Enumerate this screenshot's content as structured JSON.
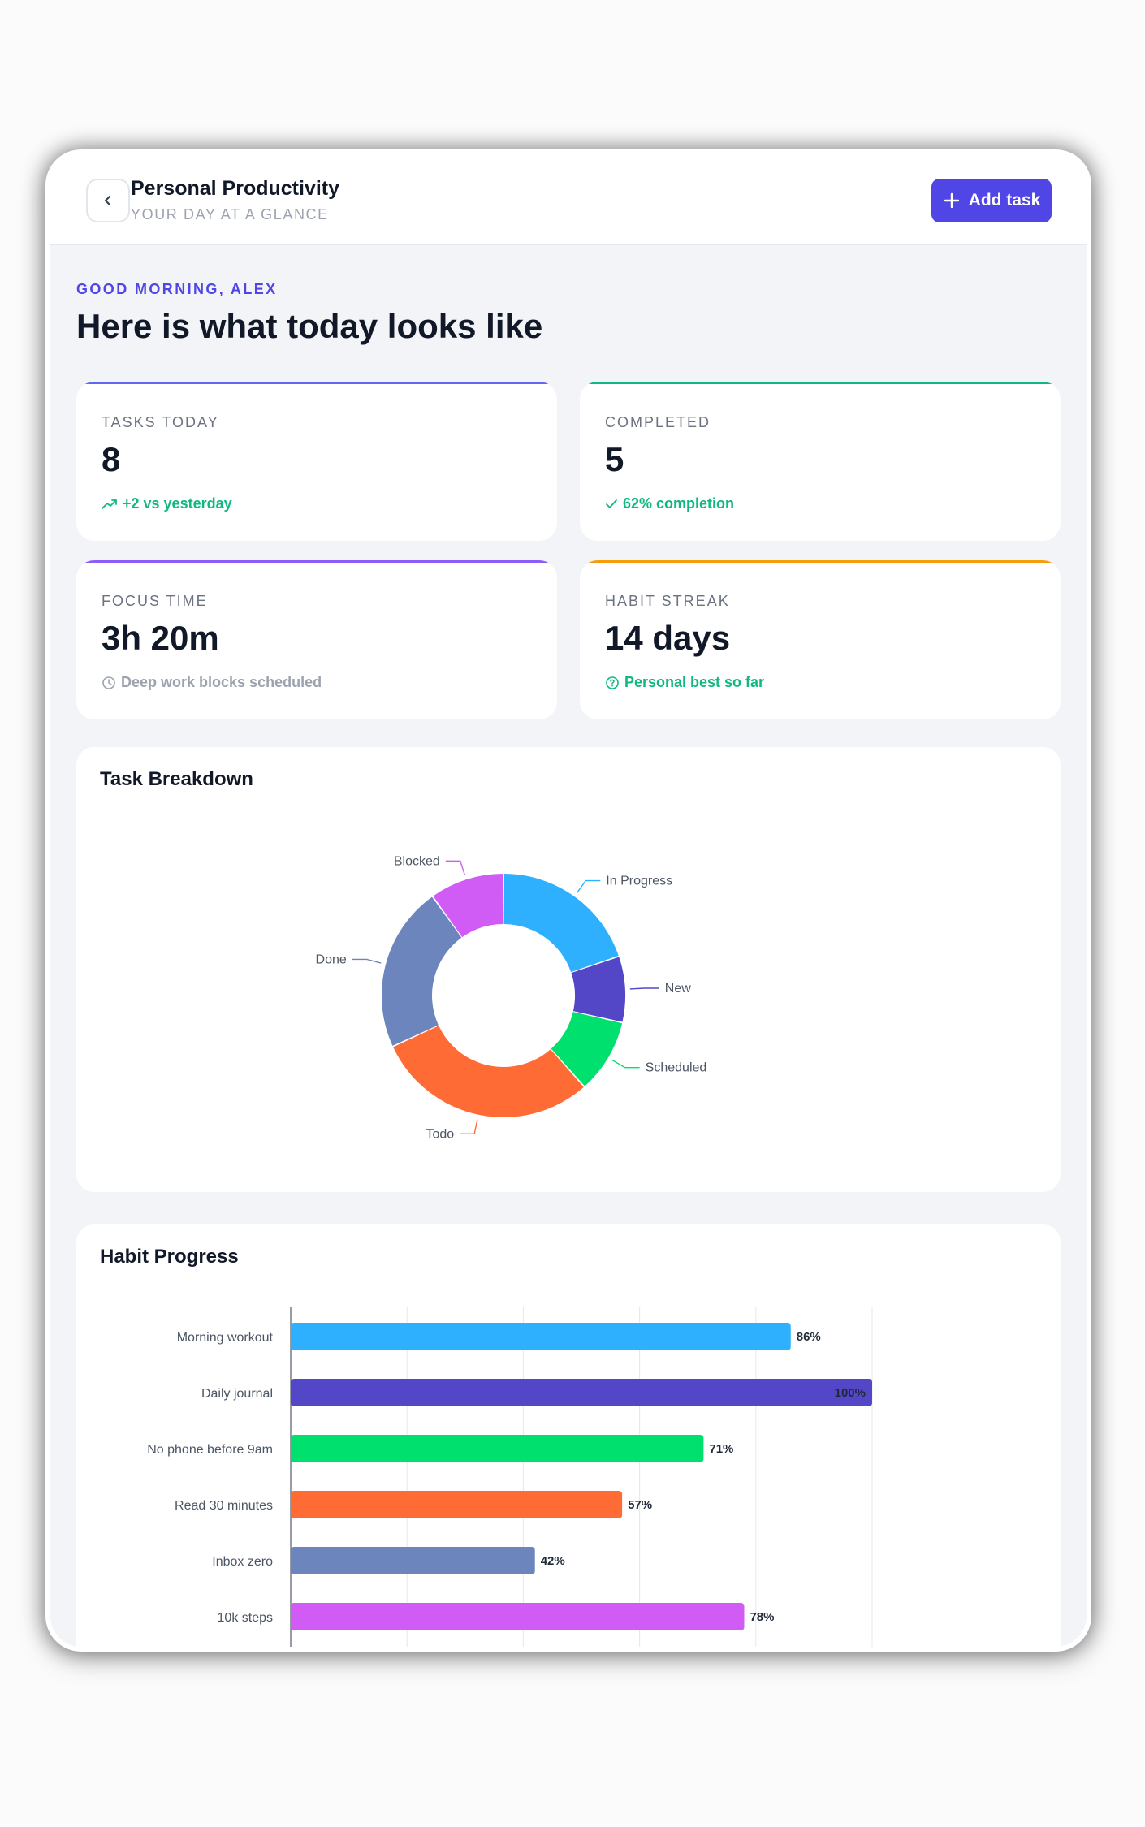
{
  "header": {
    "title": "Personal Productivity",
    "subtitle": "YOUR DAY AT A GLANCE",
    "add_label": "Add task",
    "accent": "#4f46e5"
  },
  "greeting": "GOOD MORNING, ALEX",
  "headline": "Here is what today looks like",
  "stats": [
    {
      "label": "TASKS TODAY",
      "value": "8",
      "note": "+2 vs yesterday",
      "note_icon": "trend-up-icon",
      "accent": "#6366f1",
      "note_color": "#10b981"
    },
    {
      "label": "COMPLETED",
      "value": "5",
      "note": "62% completion",
      "note_icon": "check-icon",
      "accent": "#10b981",
      "note_color": "#10b981"
    },
    {
      "label": "FOCUS TIME",
      "value": "3h 20m",
      "note": "Deep work blocks scheduled",
      "note_icon": "clock-icon",
      "accent": "#8b5cf6",
      "note_color": "#9ca3af"
    },
    {
      "label": "HABIT STREAK",
      "value": "14 days",
      "note": "Personal best so far",
      "note_icon": "help-circle-icon",
      "accent": "#f59e0b",
      "note_color": "#10b981"
    }
  ],
  "task_breakdown": {
    "title": "Task Breakdown",
    "chart_data": {
      "type": "pie",
      "categories": [
        "In Progress",
        "New",
        "Scheduled",
        "Todo",
        "Done",
        "Blocked"
      ],
      "values": [
        18,
        8,
        9,
        27,
        20,
        9
      ],
      "colors": [
        "#2eb0ff",
        "#5347c8",
        "#00e06f",
        "#ff6b35",
        "#6c86bd",
        "#d05cf5"
      ],
      "donut": true
    }
  },
  "habit_progress": {
    "title": "Habit Progress",
    "chart_data": {
      "type": "bar",
      "orientation": "horizontal",
      "categories": [
        "Morning workout",
        "Daily journal",
        "No phone before 9am",
        "Read 30 minutes",
        "Inbox zero",
        "10k steps"
      ],
      "values": [
        86,
        100,
        71,
        57,
        42,
        78
      ],
      "value_labels": [
        "86%",
        "100%",
        "71%",
        "57%",
        "42%",
        "78%"
      ],
      "colors": [
        "#2eb0ff",
        "#5347c8",
        "#00e06f",
        "#ff6b35",
        "#6c86bd",
        "#d05cf5"
      ],
      "xlim": [
        0,
        100
      ],
      "grid": true
    }
  }
}
